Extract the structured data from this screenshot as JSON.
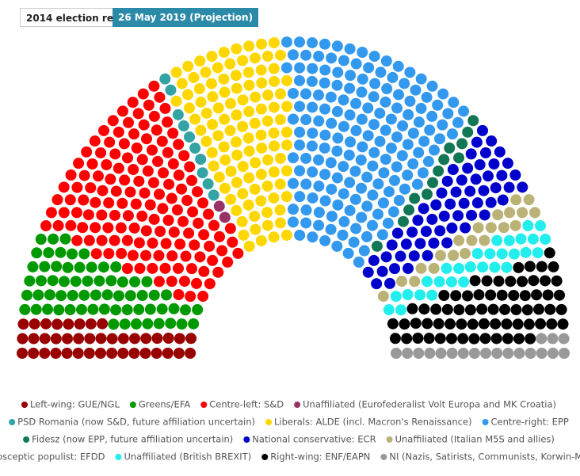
{
  "tabs": [
    "2014 election result",
    "26 May 2019 (Projection)"
  ],
  "chart_data": {
    "type": "parliament",
    "series": [
      {
        "name": "Left-wing: GUE/NGL",
        "color": "#990000",
        "values": [
          40
        ]
      },
      {
        "name": "Greens/EFA",
        "color": "#009900",
        "values": [
          64
        ]
      },
      {
        "name": "Centre-left: S&D",
        "color": "#ff0000",
        "values": [
          147
        ]
      },
      {
        "name": "Unaffiliated (Eurofederalist Volt Europa and MK Croatia)",
        "color": "#993366",
        "values": [
          2
        ]
      },
      {
        "name": "PSD Romania (now S&D, future affiliation uncertain)",
        "color": "#33a3a3",
        "values": [
          10
        ]
      },
      {
        "name": "Liberals: ALDE (incl. Macron's Renaissance)",
        "color": "#ffd700",
        "values": [
          107
        ]
      },
      {
        "name": "Centre-right: EPP",
        "color": "#3399ee",
        "values": [
          173
        ]
      },
      {
        "name": "Fidesz (now EPP, future affiliation uncertain)",
        "color": "#117755",
        "values": [
          13
        ]
      },
      {
        "name": "National conservative: ECR",
        "color": "#0000cc",
        "values": [
          59
        ]
      },
      {
        "name": "Unaffiliated (Italian M5S and allies)",
        "color": "#bbb277",
        "values": [
          21
        ]
      },
      {
        "name": "Eurosceptic populist: EFDD",
        "color": "#33ccaa",
        "hollow": true,
        "values": [
          0
        ]
      },
      {
        "name": "Unaffiliated (British BREXIT)",
        "color": "#22eeee",
        "values": [
          29
        ]
      },
      {
        "name": "Right-wing: ENF/EAPN",
        "color": "#000000",
        "values": [
          67
        ]
      },
      {
        "name": "NI (Nazis, Satirists, Communists, Korwin-Mikke)",
        "color": "#999999",
        "values": [
          19
        ]
      }
    ]
  }
}
